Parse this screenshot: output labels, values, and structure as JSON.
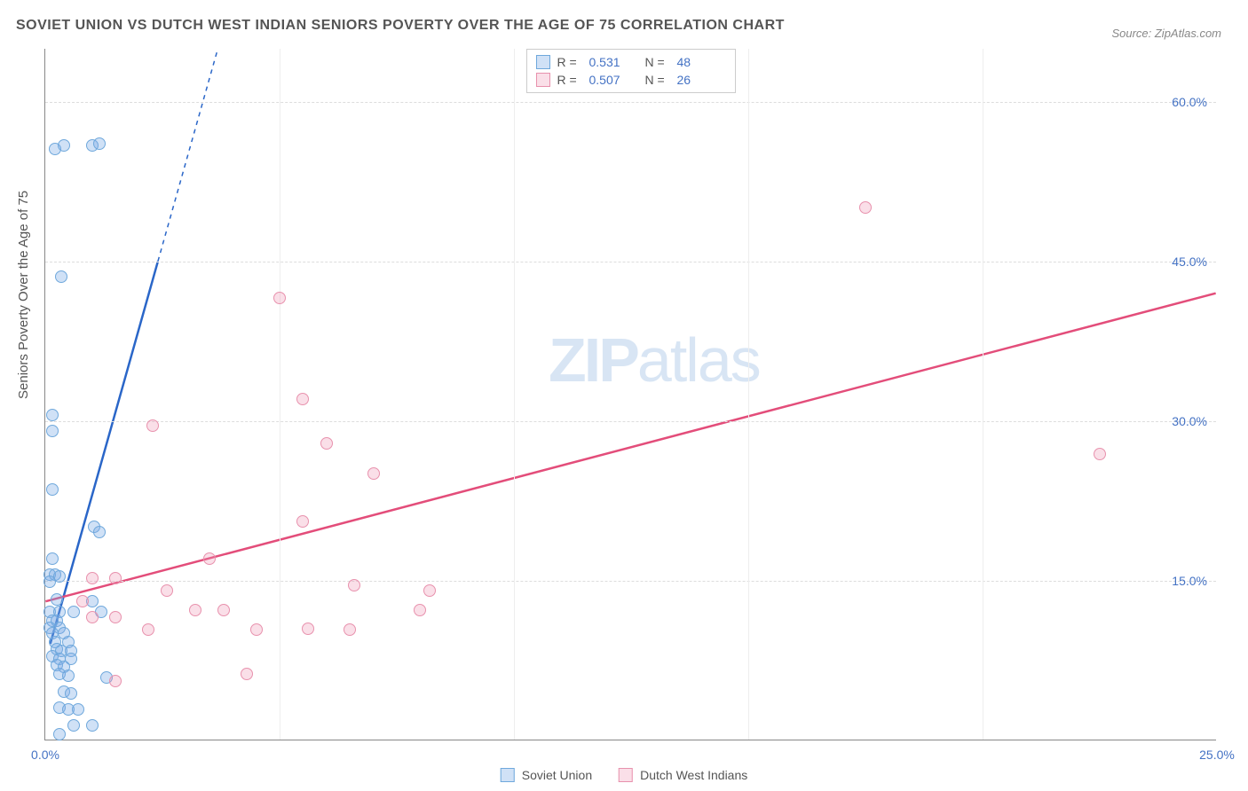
{
  "title": "SOVIET UNION VS DUTCH WEST INDIAN SENIORS POVERTY OVER THE AGE OF 75 CORRELATION CHART",
  "source": "Source: ZipAtlas.com",
  "y_axis_label": "Seniors Poverty Over the Age of 75",
  "watermark_a": "ZIP",
  "watermark_b": "atlas",
  "chart": {
    "type": "scatter",
    "xlim": [
      0,
      25
    ],
    "ylim": [
      0,
      65
    ],
    "x_ticks": [
      0,
      25
    ],
    "x_tick_labels": [
      "0.0%",
      "25.0%"
    ],
    "x_minor_ticks": [
      5,
      10,
      15,
      20
    ],
    "y_ticks": [
      15,
      30,
      45,
      60
    ],
    "y_tick_labels": [
      "15.0%",
      "30.0%",
      "45.0%",
      "60.0%"
    ],
    "background_color": "#ffffff",
    "grid_color": "#dddddd",
    "marker_size": 14,
    "series": [
      {
        "name": "Soviet Union",
        "fill": "rgba(120,170,230,0.35)",
        "stroke": "#6fa8dc",
        "trend_color": "#2a66c8",
        "trend": {
          "x1": 0.1,
          "y1": 9,
          "x2": 2.4,
          "y2": 45,
          "dash_x2": 4.0,
          "dash_y2": 70
        },
        "points": [
          [
            0.2,
            55.5
          ],
          [
            0.4,
            55.8
          ],
          [
            1.0,
            55.8
          ],
          [
            1.15,
            56.0
          ],
          [
            0.35,
            43.5
          ],
          [
            0.15,
            30.5
          ],
          [
            0.15,
            29.0
          ],
          [
            0.15,
            23.5
          ],
          [
            1.05,
            20.0
          ],
          [
            1.15,
            19.5
          ],
          [
            0.15,
            17.0
          ],
          [
            0.1,
            15.5
          ],
          [
            0.2,
            15.5
          ],
          [
            0.3,
            15.3
          ],
          [
            0.1,
            14.8
          ],
          [
            0.25,
            13.2
          ],
          [
            1.0,
            13.0
          ],
          [
            0.1,
            12.0
          ],
          [
            0.3,
            12.0
          ],
          [
            0.6,
            12.0
          ],
          [
            1.2,
            12.0
          ],
          [
            0.15,
            11.2
          ],
          [
            0.25,
            11.2
          ],
          [
            0.1,
            10.5
          ],
          [
            0.3,
            10.5
          ],
          [
            0.15,
            10.0
          ],
          [
            0.4,
            10.0
          ],
          [
            0.2,
            9.2
          ],
          [
            0.5,
            9.2
          ],
          [
            0.25,
            8.5
          ],
          [
            0.35,
            8.3
          ],
          [
            0.55,
            8.3
          ],
          [
            0.15,
            7.8
          ],
          [
            0.3,
            7.6
          ],
          [
            0.55,
            7.6
          ],
          [
            0.25,
            7.0
          ],
          [
            0.4,
            6.8
          ],
          [
            0.3,
            6.2
          ],
          [
            0.5,
            6.0
          ],
          [
            1.3,
            5.8
          ],
          [
            0.4,
            4.5
          ],
          [
            0.55,
            4.3
          ],
          [
            0.3,
            3.0
          ],
          [
            0.5,
            2.8
          ],
          [
            0.7,
            2.8
          ],
          [
            0.6,
            1.3
          ],
          [
            1.0,
            1.3
          ],
          [
            0.3,
            0.5
          ]
        ]
      },
      {
        "name": "Dutch West Indians",
        "fill": "rgba(240,150,180,0.3)",
        "stroke": "#e891ad",
        "trend_color": "#e34d7a",
        "trend": {
          "x1": 0,
          "y1": 13,
          "x2": 25,
          "y2": 42
        },
        "points": [
          [
            17.5,
            50.0
          ],
          [
            5.0,
            41.5
          ],
          [
            5.5,
            32.0
          ],
          [
            2.3,
            29.5
          ],
          [
            6.0,
            27.8
          ],
          [
            22.5,
            26.8
          ],
          [
            7.0,
            25.0
          ],
          [
            5.5,
            20.5
          ],
          [
            3.5,
            17.0
          ],
          [
            1.0,
            15.2
          ],
          [
            1.5,
            15.2
          ],
          [
            2.6,
            14.0
          ],
          [
            6.6,
            14.5
          ],
          [
            8.2,
            14.0
          ],
          [
            0.8,
            13.0
          ],
          [
            3.2,
            12.2
          ],
          [
            3.8,
            12.2
          ],
          [
            8.0,
            12.2
          ],
          [
            1.0,
            11.5
          ],
          [
            1.5,
            11.5
          ],
          [
            2.2,
            10.3
          ],
          [
            4.5,
            10.3
          ],
          [
            5.6,
            10.4
          ],
          [
            6.5,
            10.3
          ],
          [
            4.3,
            6.2
          ],
          [
            1.5,
            5.5
          ]
        ]
      }
    ]
  },
  "stats": {
    "r_label": "R =",
    "n_label": "N =",
    "rows": [
      {
        "r": "0.531",
        "n": "48"
      },
      {
        "r": "0.507",
        "n": "26"
      }
    ]
  },
  "legend": {
    "items": [
      "Soviet Union",
      "Dutch West Indians"
    ]
  }
}
